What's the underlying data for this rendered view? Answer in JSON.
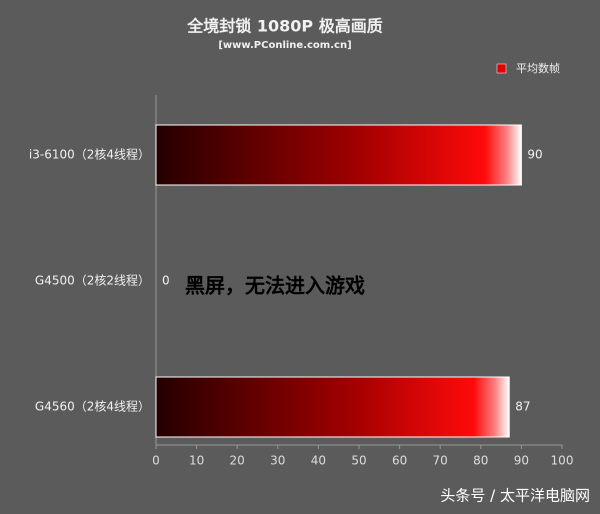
{
  "chart_data": {
    "type": "hbar",
    "title": "全境封锁 1080P 极高画质",
    "subtitle": "[www.PConline.com.cn]",
    "categories": [
      "i3-6100（2核4线程）",
      "G4500（2核2线程）",
      "G4560（2核4线程）"
    ],
    "series": [
      {
        "name": "平均数帧",
        "color": "#e00000",
        "values": [
          90,
          0,
          87
        ]
      }
    ],
    "xlim": [
      0,
      100
    ],
    "xticks": [
      0,
      10,
      20,
      30,
      40,
      50,
      60,
      70,
      80,
      90,
      100
    ],
    "legend": "top-right",
    "annotation": "黑屏，无法进入游戏",
    "watermark": "头条号 / 太平洋电脑网"
  }
}
